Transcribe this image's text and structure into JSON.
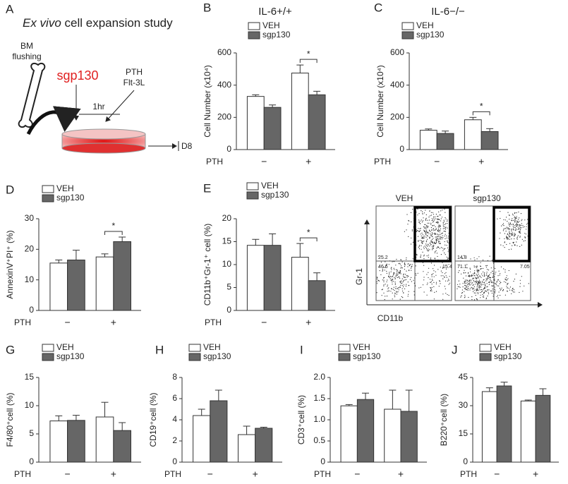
{
  "panel_a": {
    "letter": "A",
    "title_italic": "Ex vivo",
    "title_rest": " cell expansion study",
    "bm_line1": "BM",
    "bm_line2": "flushing",
    "drug": "sgp130",
    "ptH": "PTH",
    "flt": "Flt-3L",
    "time": "1hr",
    "day": "D8"
  },
  "panel_f": {
    "letter": "F",
    "left_title": "VEH",
    "right_title": "sgp130",
    "y_label": "Gr-1",
    "x_label": "CD11b",
    "left_quadrants": [
      "25.2",
      "46.6",
      "15.4"
    ],
    "right_quadrants": [
      "14.8",
      "71.1",
      "7.05"
    ]
  },
  "chart_data": [
    {
      "type": "bar",
      "panel": "B",
      "title": "IL-6+/+",
      "ylabel": "Cell Number (x10⁴)",
      "xlabel": "PTH",
      "categories": [
        "−",
        "+"
      ],
      "series": [
        {
          "name": "VEH",
          "color": "#ffffff",
          "values": [
            330,
            475
          ],
          "errors": [
            10,
            50
          ]
        },
        {
          "name": "sgp130",
          "color": "#666666",
          "values": [
            262,
            340
          ],
          "errors": [
            15,
            22
          ]
        }
      ],
      "ylim": [
        0,
        600
      ],
      "yticks": [
        0,
        200,
        400,
        600
      ],
      "significance": "*"
    },
    {
      "type": "bar",
      "panel": "C",
      "title": "IL-6−/−",
      "ylabel": "Cell Number (x10⁴)",
      "xlabel": "PTH",
      "categories": [
        "−",
        "+"
      ],
      "series": [
        {
          "name": "VEH",
          "color": "#ffffff",
          "values": [
            120,
            185
          ],
          "errors": [
            8,
            15
          ]
        },
        {
          "name": "sgp130",
          "color": "#666666",
          "values": [
            100,
            112
          ],
          "errors": [
            15,
            18
          ]
        }
      ],
      "ylim": [
        0,
        600
      ],
      "yticks": [
        0,
        200,
        400,
        600
      ],
      "significance": "*"
    },
    {
      "type": "bar",
      "panel": "D",
      "ylabel": "AnnexinV⁺PI⁺ (%)",
      "xlabel": "PTH",
      "categories": [
        "−",
        "+"
      ],
      "series": [
        {
          "name": "VEH",
          "color": "#ffffff",
          "values": [
            15.5,
            17.5
          ],
          "errors": [
            1,
            1
          ]
        },
        {
          "name": "sgp130",
          "color": "#666666",
          "values": [
            16.5,
            22.5
          ],
          "errors": [
            3.2,
            1.5
          ]
        }
      ],
      "ylim": [
        0,
        30
      ],
      "yticks": [
        0,
        10,
        20,
        30
      ],
      "significance": "*"
    },
    {
      "type": "bar",
      "panel": "E",
      "ylabel": "CD11b⁺Gr-1⁺ cell (%)",
      "xlabel": "PTH",
      "categories": [
        "−",
        "+"
      ],
      "series": [
        {
          "name": "VEH",
          "color": "#ffffff",
          "values": [
            14.2,
            11.6
          ],
          "errors": [
            1.3,
            3
          ]
        },
        {
          "name": "sgp130",
          "color": "#666666",
          "values": [
            14.2,
            6.5
          ],
          "errors": [
            2.5,
            1.7
          ]
        }
      ],
      "ylim": [
        0,
        20
      ],
      "yticks": [
        0,
        5,
        10,
        15,
        20
      ],
      "significance": "*"
    },
    {
      "type": "bar",
      "panel": "G",
      "ylabel": "F4/80⁺cell (%)",
      "xlabel": "PTH",
      "categories": [
        "−",
        "+"
      ],
      "series": [
        {
          "name": "VEH",
          "color": "#ffffff",
          "values": [
            7.3,
            8
          ],
          "errors": [
            0.9,
            2.6
          ]
        },
        {
          "name": "sgp130",
          "color": "#666666",
          "values": [
            7.4,
            5.6
          ],
          "errors": [
            0.9,
            1.4
          ]
        }
      ],
      "ylim": [
        0,
        15
      ],
      "yticks": [
        0,
        5,
        10,
        15
      ]
    },
    {
      "type": "bar",
      "panel": "H",
      "ylabel": "CD19⁺cell (%)",
      "xlabel": "PTH",
      "categories": [
        "−",
        "+"
      ],
      "series": [
        {
          "name": "VEH",
          "color": "#ffffff",
          "values": [
            4.4,
            2.6
          ],
          "errors": [
            0.6,
            0.8
          ]
        },
        {
          "name": "sgp130",
          "color": "#666666",
          "values": [
            5.8,
            3.2
          ],
          "errors": [
            1,
            0.1
          ]
        }
      ],
      "ylim": [
        0,
        8
      ],
      "yticks": [
        0,
        2,
        4,
        6,
        8
      ]
    },
    {
      "type": "bar",
      "panel": "I",
      "ylabel": "CD3⁺cell (%)",
      "xlabel": "PTH",
      "categories": [
        "−",
        "+"
      ],
      "series": [
        {
          "name": "VEH",
          "color": "#ffffff",
          "values": [
            1.33,
            1.25
          ],
          "errors": [
            0.03,
            0.45
          ]
        },
        {
          "name": "sgp130",
          "color": "#666666",
          "values": [
            1.48,
            1.2
          ],
          "errors": [
            0.15,
            0.5
          ]
        }
      ],
      "ylim": [
        0,
        2
      ],
      "yticks": [
        0,
        0.5,
        {
          "value": 1,
          "label": "1.0"
        },
        1.5,
        {
          "value": 2,
          "label": "2.0"
        }
      ]
    },
    {
      "type": "bar",
      "panel": "J",
      "ylabel": "B220⁺cell (%)",
      "xlabel": "PTH",
      "categories": [
        "−",
        "+"
      ],
      "series": [
        {
          "name": "VEH",
          "color": "#ffffff",
          "values": [
            37.5,
            32.5
          ],
          "errors": [
            2,
            0.5
          ]
        },
        {
          "name": "sgp130",
          "color": "#666666",
          "values": [
            40.5,
            35.5
          ],
          "errors": [
            2,
            3.5
          ]
        }
      ],
      "ylim": [
        0,
        45
      ],
      "yticks": [
        0,
        15,
        30,
        45
      ]
    }
  ]
}
